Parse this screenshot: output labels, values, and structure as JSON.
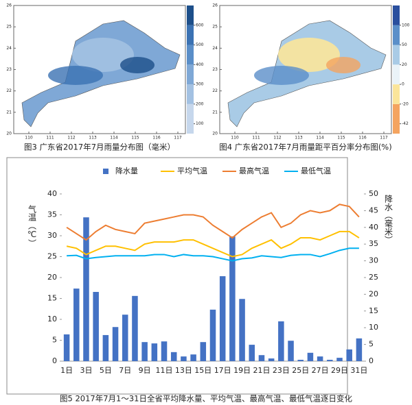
{
  "maps": [
    {
      "caption": "图3 广东省2017年7月雨量分布图（毫米）",
      "xticks": [
        110,
        111,
        112,
        113,
        114,
        115,
        116,
        117
      ],
      "yticks": [
        20,
        21,
        22,
        23,
        24,
        25,
        26
      ],
      "colorbar_ticks": [
        100,
        200,
        300,
        400,
        500,
        600
      ],
      "colorbar_colors": [
        "#c6d7ec",
        "#a3c1e2",
        "#7fa8d6",
        "#5a8ec8",
        "#3b72b3",
        "#1d4f8a"
      ]
    },
    {
      "caption": "图4 广东省2017年7月雨量距平百分率分布图(%)",
      "xticks": [
        110,
        111,
        112,
        113,
        114,
        115,
        116,
        117
      ],
      "yticks": [
        20,
        21,
        22,
        23,
        24,
        25,
        26
      ],
      "colorbar_ticks": [
        -42,
        -20,
        0,
        20,
        50,
        100
      ],
      "colorbar_colors": [
        "#f4a460",
        "#fbe59a",
        "#eaf3f8",
        "#a9cbe6",
        "#5b8fc9",
        "#2a4f9e"
      ]
    }
  ],
  "chart_data": {
    "type": "bar-line",
    "title": "图5  2017年7月1～31日全省平均降水量、平均气温、最高气温、最低气温逐日变化",
    "y_label": "气温（℃）",
    "y2_label": "降水（毫米）",
    "categories": [
      "1日",
      null,
      "3日",
      null,
      "5日",
      null,
      "7日",
      null,
      "9日",
      null,
      "11日",
      null,
      "13日",
      null,
      "15日",
      null,
      "17日",
      null,
      "19日",
      null,
      "21日",
      null,
      "23日",
      null,
      "25日",
      null,
      "27日",
      null,
      "29日",
      null,
      "31日"
    ],
    "ylim": [
      0,
      40
    ],
    "yticks": [
      0,
      5,
      10,
      15,
      20,
      25,
      30,
      35,
      40
    ],
    "y2lim": [
      0,
      50
    ],
    "y2ticks": [
      0,
      5,
      10,
      15,
      20,
      25,
      30,
      35,
      40,
      45,
      50
    ],
    "series": [
      {
        "name": "降水量",
        "type": "bar",
        "axis": "y2",
        "color": "#4472c4",
        "values": [
          8,
          21.7,
          43,
          20.7,
          7.8,
          10.2,
          13.9,
          19.5,
          5.7,
          5.3,
          5.9,
          2.7,
          1.4,
          2,
          5.7,
          15.4,
          25.4,
          37.3,
          18.6,
          4.9,
          1.8,
          0.8,
          11.9,
          6.1,
          0.4,
          2.5,
          1.4,
          0.4,
          1,
          3.5,
          6.8
        ]
      },
      {
        "name": "平均气温",
        "type": "line",
        "color": "#ffc000",
        "values": [
          27.5,
          27,
          25.5,
          26.5,
          27.5,
          27.5,
          27,
          26.5,
          28,
          28.5,
          28.5,
          28.5,
          29,
          29,
          28,
          27,
          26,
          25,
          25.5,
          27,
          28,
          29,
          27,
          28,
          29.5,
          29.5,
          29,
          30,
          31,
          31,
          29.5
        ]
      },
      {
        "name": "最高气温",
        "type": "line",
        "color": "#ed7d31",
        "values": [
          32,
          30.5,
          29,
          31,
          32.5,
          31.5,
          31,
          30.5,
          33,
          33.5,
          34,
          34.5,
          35,
          35,
          34.5,
          32.5,
          31,
          29.5,
          31.5,
          33,
          34.5,
          35.5,
          32,
          33,
          35,
          36,
          35.5,
          36,
          37.5,
          37,
          34.5
        ]
      },
      {
        "name": "最低气温",
        "type": "line",
        "color": "#00b0f0",
        "values": [
          25.2,
          25.3,
          24.5,
          24.8,
          25,
          25.2,
          25.2,
          25.2,
          25.2,
          25.5,
          25.5,
          25,
          25.5,
          25.2,
          25.2,
          25,
          24.5,
          24,
          24.5,
          24.7,
          25.2,
          25,
          24.8,
          25.3,
          25.5,
          25.5,
          25,
          25.7,
          26.5,
          27,
          27
        ]
      }
    ]
  }
}
